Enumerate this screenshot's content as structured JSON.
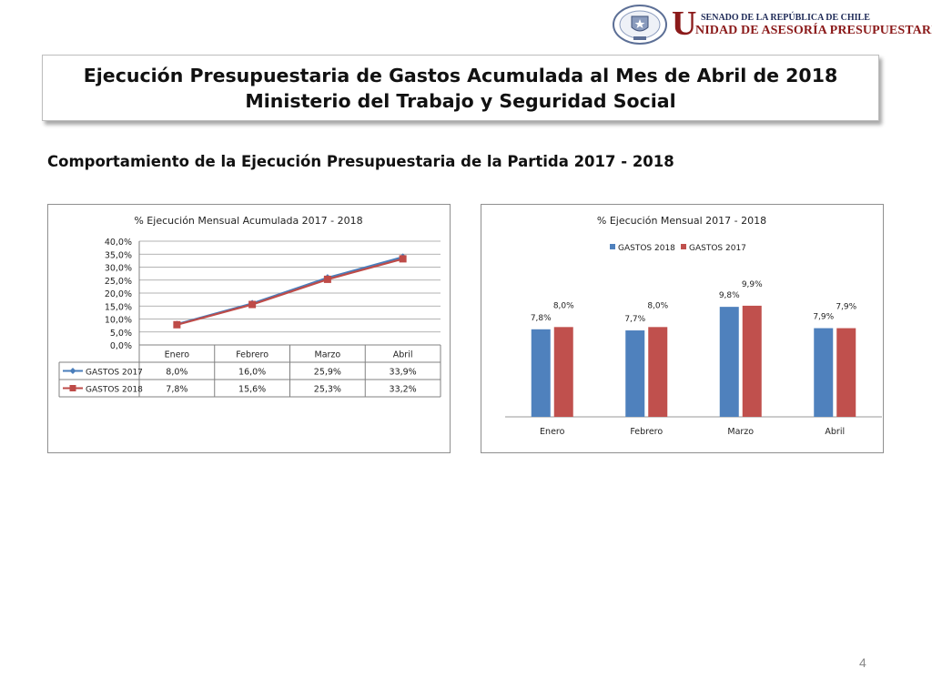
{
  "header": {
    "top_line": "SENADO DE LA REPÚBLICA DE CHILE",
    "brand_initial": "U",
    "brand_rest": "NIDAD DE ASESORÍA PRESUPUESTARIA",
    "seal_icon": "senate-seal-icon"
  },
  "title": {
    "line1": "Ejecución Presupuestaria de Gastos Acumulada al Mes de Abril de 2018",
    "line2": "Ministerio del Trabajo y Seguridad Social"
  },
  "subtitle": "Comportamiento de la Ejecución Presupuestaria de la Partida 2017 - 2018",
  "page_number": "4",
  "chart_data": [
    {
      "type": "line",
      "title": "% Ejecución Mensual Acumulada 2017 - 2018",
      "categories": [
        "Enero",
        "Febrero",
        "Marzo",
        "Abril"
      ],
      "ylim": [
        0,
        40
      ],
      "yticks": [
        "0,0%",
        "5,0%",
        "10,0%",
        "15,0%",
        "20,0%",
        "25,0%",
        "30,0%",
        "35,0%",
        "40,0%"
      ],
      "grid": true,
      "legend": "data-table",
      "series": [
        {
          "name": "GASTOS 2017",
          "values": [
            8.0,
            16.0,
            25.9,
            33.9
          ],
          "labels": [
            "8,0%",
            "16,0%",
            "25,9%",
            "33,9%"
          ],
          "color": "#4a7ebb",
          "marker": "diamond"
        },
        {
          "name": "GASTOS 2018",
          "values": [
            7.8,
            15.6,
            25.3,
            33.2
          ],
          "labels": [
            "7,8%",
            "15,6%",
            "25,3%",
            "33,2%"
          ],
          "color": "#be4b48",
          "marker": "square"
        }
      ]
    },
    {
      "type": "bar",
      "title": "% Ejecución Mensual 2017 - 2018",
      "categories": [
        "Enero",
        "Febrero",
        "Marzo",
        "Abril"
      ],
      "ylim": [
        0,
        12
      ],
      "grid": false,
      "legend": "top",
      "series": [
        {
          "name": "GASTOS 2018",
          "values": [
            7.8,
            7.7,
            9.8,
            7.9
          ],
          "labels": [
            "7,8%",
            "7,7%",
            "9,8%",
            "7,9%"
          ],
          "color": "#4f81bd"
        },
        {
          "name": "GASTOS 2017",
          "values": [
            8.0,
            8.0,
            9.9,
            7.9
          ],
          "labels": [
            "8,0%",
            "8,0%",
            "9,9%",
            "7,9%"
          ],
          "color": "#c0504d"
        }
      ]
    }
  ]
}
